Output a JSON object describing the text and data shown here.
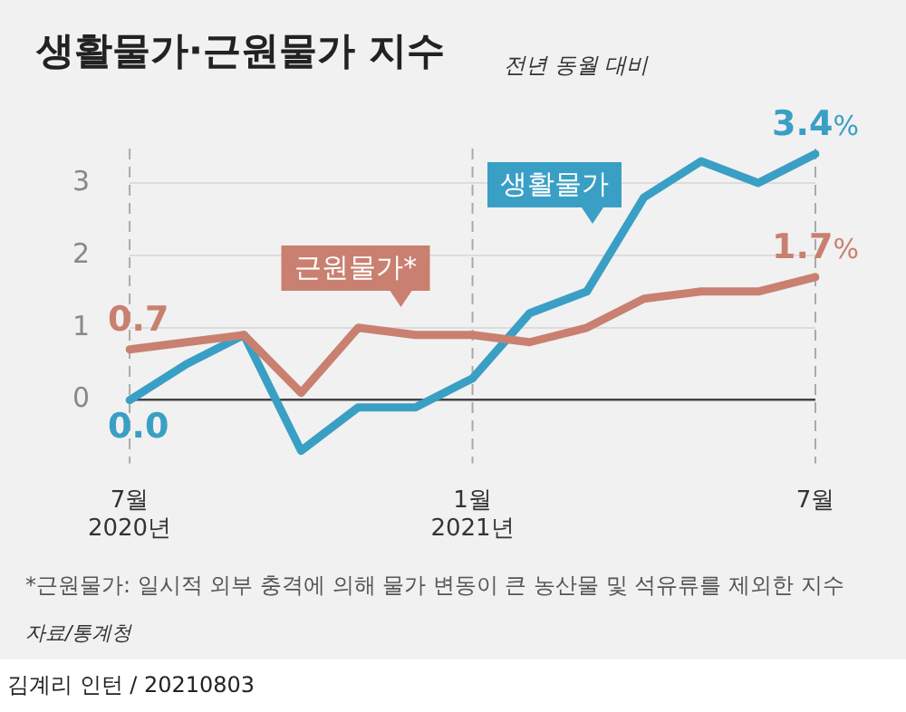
{
  "chart_data": {
    "type": "line",
    "title": "생활물가·근원물가 지수",
    "subtitle": "전년 동월 대비",
    "categories": [
      "7월\n2020년",
      null,
      null,
      null,
      null,
      null,
      "1월\n2021년",
      null,
      null,
      null,
      null,
      null,
      "7월"
    ],
    "series": [
      {
        "name": "근원물가*",
        "color": "#c98070",
        "values": [
          0.7,
          0.8,
          0.9,
          0.1,
          1.0,
          0.9,
          0.9,
          0.8,
          1.0,
          1.4,
          1.5,
          1.5,
          1.7
        ],
        "value_labels": [
          "0.7",
          null,
          null,
          null,
          null,
          null,
          null,
          null,
          null,
          null,
          null,
          null,
          "1.7%"
        ]
      },
      {
        "name": "생활물가",
        "color": "#3a9fc4",
        "values": [
          0.0,
          0.5,
          0.9,
          -0.7,
          -0.1,
          -0.1,
          0.3,
          1.2,
          1.5,
          2.8,
          3.3,
          3.0,
          3.4
        ],
        "value_labels": [
          "0.0",
          null,
          null,
          null,
          null,
          null,
          null,
          null,
          null,
          null,
          null,
          null,
          "3.4%"
        ]
      }
    ],
    "ylim": [
      -0.9,
      3.5
    ],
    "yticks": [
      0,
      1,
      2,
      3
    ],
    "grid": "y",
    "legend": false,
    "marker": "none",
    "line_style": "solid",
    "ref_lines": [
      {
        "axis": "x",
        "value": "7월\n2020년",
        "line_style": "dashed",
        "color": "#aaaaaa"
      },
      {
        "axis": "x",
        "value": "1월\n2021년",
        "line_style": "dashed",
        "color": "#aaaaaa"
      },
      {
        "axis": "x",
        "value": "7월",
        "line_style": "dashed",
        "color": "#aaaaaa"
      }
    ],
    "annotations": [
      "*근원물가: 일시적 외부 충격에 의해 물가 변동이 큰 농산물 및 석유류를 제외한 지수",
      "자료/통계청",
      "김계리 인턴 / 20210803"
    ]
  }
}
